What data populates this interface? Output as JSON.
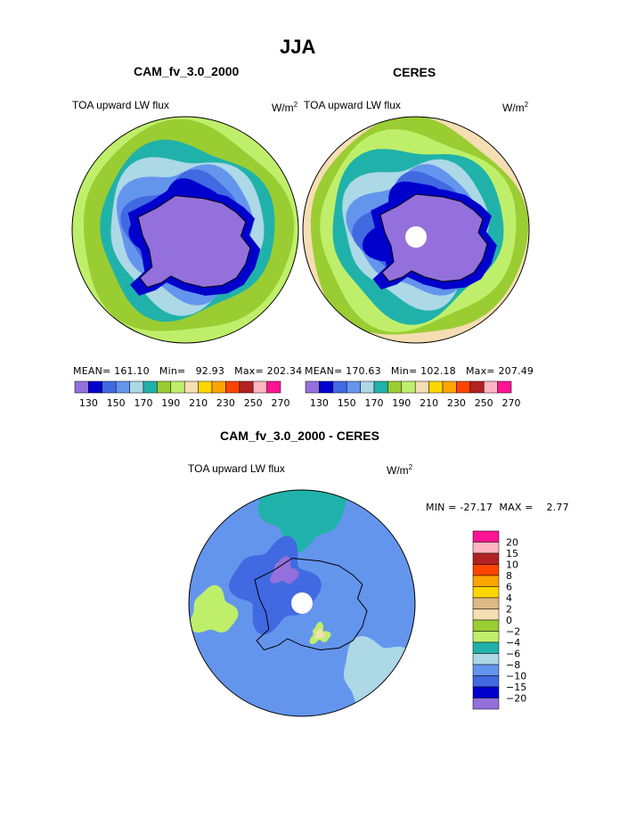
{
  "page": {
    "season": "JJA"
  },
  "panels": [
    {
      "title": "CAM_fv_3.0_2000",
      "variable": "TOA upward LW flux",
      "unit_base": "W/m",
      "unit_exp": "2",
      "mean_label": "MEAN=",
      "mean": "161.10",
      "min_label": "Min=",
      "min": "92.93",
      "max_label": "Max=",
      "max": "202.34"
    },
    {
      "title": "CERES",
      "variable": "TOA upward LW flux",
      "unit_base": "W/m",
      "unit_exp": "2",
      "mean_label": "MEAN=",
      "mean": "170.63",
      "min_label": "Min=",
      "min": "102.18",
      "max_label": "Max=",
      "max": "207.49"
    }
  ],
  "diff": {
    "title": "CAM_fv_3.0_2000 - CERES",
    "variable": "TOA upward LW flux",
    "unit_base": "W/m",
    "unit_exp": "2",
    "stats": "MIN = -27.17  MAX =    2.77"
  },
  "colors": {
    "levels": [
      "#9370db",
      "#0000cd",
      "#4169e1",
      "#6495ed",
      "#add8e6",
      "#20b2aa",
      "#9acd32",
      "#bfef6a",
      "#f5deb3",
      "#ffd700",
      "#ffa500",
      "#ff4500",
      "#b22222",
      "#ffb6c1",
      "#ff1493"
    ],
    "ocean_mid": "#b0dcec",
    "ice": "#9370db"
  },
  "chart_data": [
    {
      "type": "heatmap",
      "title": "CAM_fv_3.0_2000",
      "projection": "south polar stereographic",
      "colorbar_ticks": [
        "130",
        "150",
        "170",
        "190",
        "210",
        "230",
        "250",
        "270"
      ],
      "colorbar_levels": [
        120,
        130,
        140,
        150,
        160,
        170,
        180,
        190,
        200,
        210,
        220,
        230,
        240,
        250,
        260,
        270
      ],
      "ring_values_from_pole": [
        125,
        135,
        145,
        155,
        165,
        175,
        185,
        195
      ],
      "stats": {
        "mean": 161.1,
        "min": 92.93,
        "max": 202.34
      }
    },
    {
      "type": "heatmap",
      "title": "CERES",
      "projection": "south polar stereographic",
      "colorbar_ticks": [
        "130",
        "150",
        "170",
        "190",
        "210",
        "230",
        "250",
        "270"
      ],
      "colorbar_levels": [
        120,
        130,
        140,
        150,
        160,
        170,
        180,
        190,
        200,
        210,
        220,
        230,
        240,
        250,
        260,
        270
      ],
      "ring_values_from_pole": [
        125,
        135,
        145,
        155,
        165,
        175,
        185,
        195,
        205
      ],
      "stats": {
        "mean": 170.63,
        "min": 102.18,
        "max": 207.49
      }
    },
    {
      "type": "heatmap",
      "title": "CAM_fv_3.0_2000 - CERES",
      "projection": "south polar stereographic",
      "colorbar_ticks": [
        "20",
        "15",
        "10",
        "8",
        "6",
        "4",
        "2",
        "0",
        "-2",
        "-4",
        "-6",
        "-8",
        "-10",
        "-15",
        "-20"
      ],
      "colorbar_colors": [
        "#ff1493",
        "#ffb6c1",
        "#b22222",
        "#ff4500",
        "#ffa500",
        "#ffd700",
        "#deb887",
        "#f5deb3",
        "#9acd32",
        "#bfef6a",
        "#20b2aa",
        "#add8e6",
        "#6495ed",
        "#4169e1",
        "#0000cd",
        "#9370db"
      ],
      "stats": {
        "min": -27.17,
        "max": 2.77
      }
    }
  ]
}
